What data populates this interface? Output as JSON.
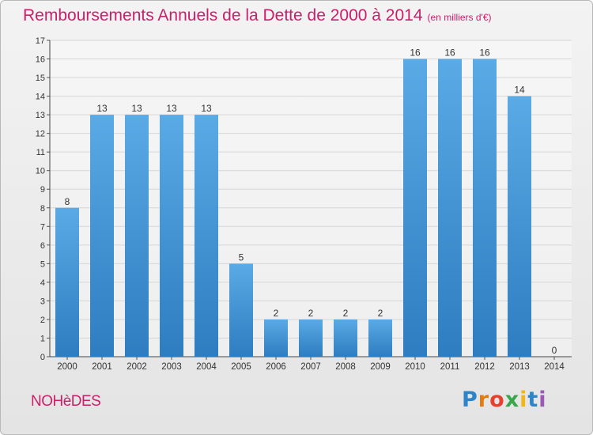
{
  "chart_data": {
    "type": "bar",
    "title": "Remboursements Annuels de la Dette de 2000 à 2014",
    "unit": "(en milliers d'€)",
    "categories": [
      "2000",
      "2001",
      "2002",
      "2003",
      "2004",
      "2005",
      "2006",
      "2007",
      "2008",
      "2009",
      "2010",
      "2011",
      "2012",
      "2013",
      "2014"
    ],
    "values": [
      8,
      13,
      13,
      13,
      13,
      5,
      2,
      2,
      2,
      2,
      16,
      16,
      16,
      14,
      0
    ],
    "yticks": [
      0,
      1,
      2,
      3,
      4,
      5,
      6,
      7,
      8,
      9,
      10,
      11,
      12,
      13,
      14,
      15,
      16,
      17
    ],
    "ylim": [
      0,
      17
    ],
    "xlabel": "",
    "ylabel": "",
    "grid": true,
    "bar_color_top": "#5aaae6",
    "bar_color_bottom": "#2d7dc0"
  },
  "commune": "NOHèDES",
  "brand": {
    "letters": [
      "P",
      "r",
      "o",
      "x",
      "i",
      "t",
      "i"
    ]
  },
  "colors": {
    "title": "#c8206a",
    "grid": "#d6d6d6"
  }
}
